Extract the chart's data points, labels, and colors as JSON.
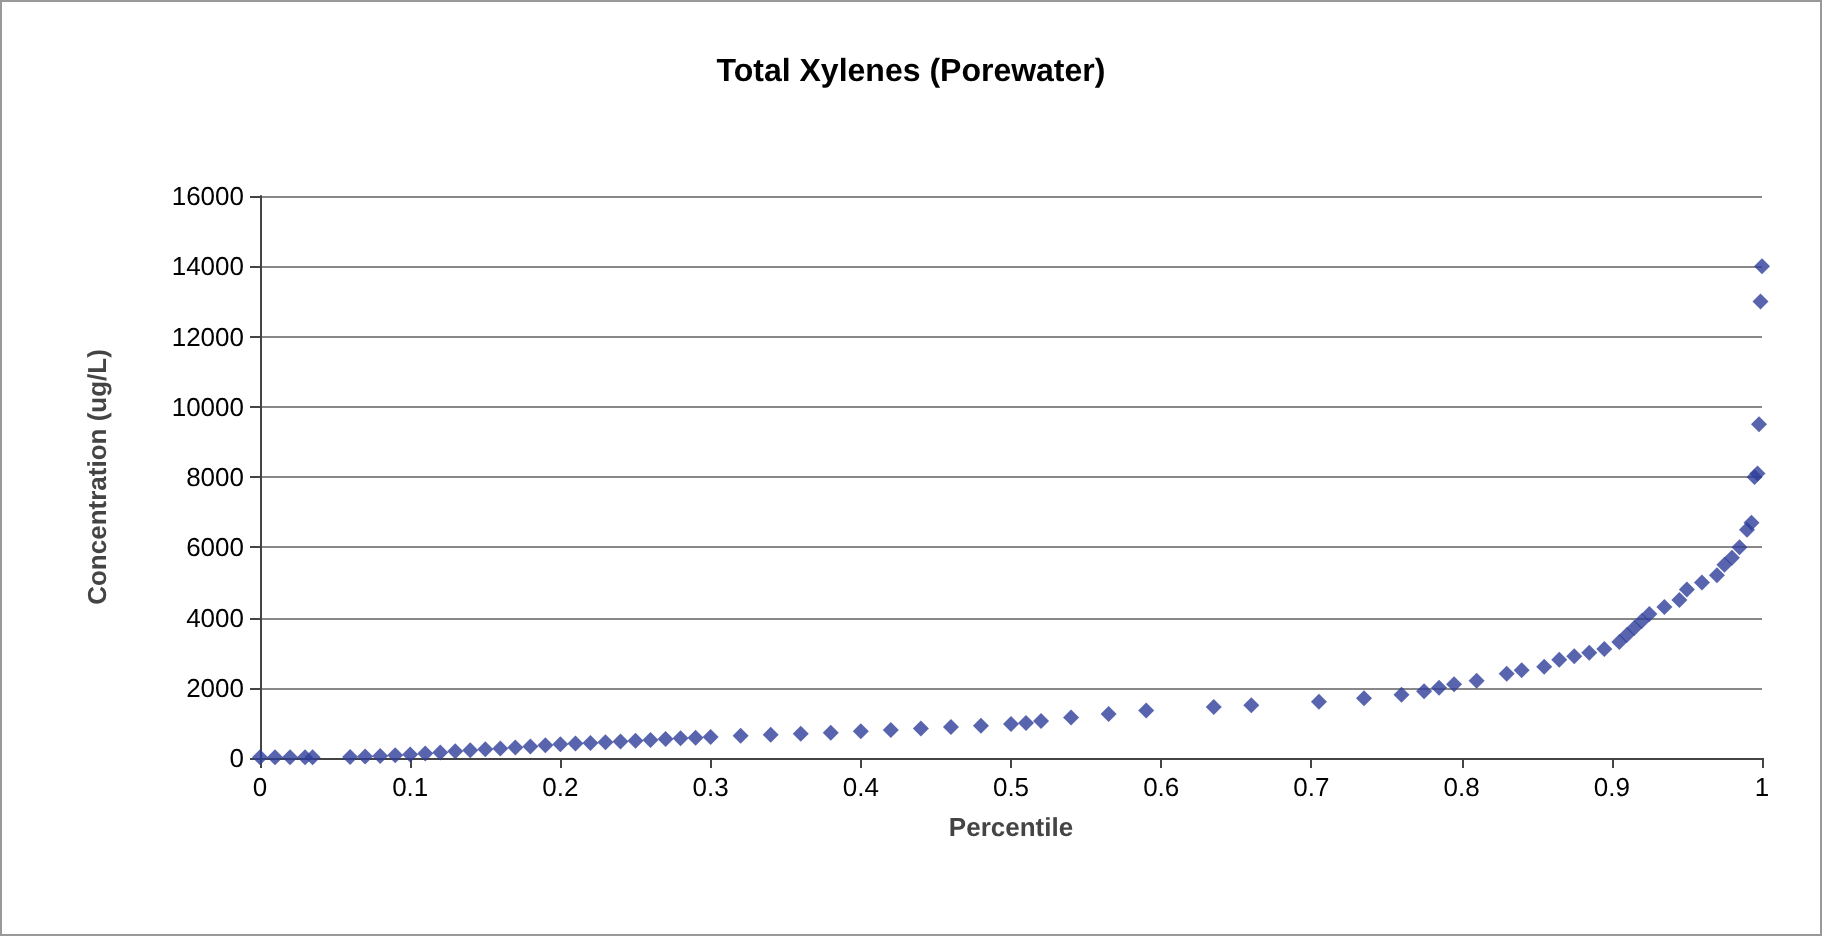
{
  "chart_data": {
    "type": "scatter",
    "title": "Total Xylenes (Porewater)",
    "xlabel": "Percentile",
    "ylabel": "Concentration (ug/L)",
    "x": [
      0,
      0.01,
      0.02,
      0.03,
      0.035,
      0.06,
      0.07,
      0.08,
      0.09,
      0.1,
      0.11,
      0.12,
      0.13,
      0.14,
      0.15,
      0.16,
      0.17,
      0.18,
      0.19,
      0.2,
      0.21,
      0.22,
      0.23,
      0.24,
      0.25,
      0.26,
      0.27,
      0.28,
      0.29,
      0.3,
      0.32,
      0.34,
      0.36,
      0.38,
      0.4,
      0.42,
      0.44,
      0.46,
      0.48,
      0.5,
      0.51,
      0.52,
      0.54,
      0.565,
      0.59,
      0.635,
      0.66,
      0.705,
      0.735,
      0.76,
      0.775,
      0.785,
      0.795,
      0.81,
      0.83,
      0.84,
      0.855,
      0.865,
      0.875,
      0.885,
      0.895,
      0.905,
      0.91,
      0.915,
      0.92,
      0.925,
      0.935,
      0.945,
      0.95,
      0.96,
      0.97,
      0.975,
      0.98,
      0.985,
      0.99,
      0.993,
      0.995,
      0.997,
      0.998,
      0.999,
      1
    ],
    "values": [
      20,
      20,
      20,
      20,
      20,
      30,
      40,
      60,
      80,
      100,
      130,
      160,
      190,
      220,
      250,
      270,
      300,
      330,
      360,
      390,
      410,
      430,
      450,
      470,
      490,
      510,
      540,
      560,
      580,
      600,
      630,
      660,
      690,
      720,
      760,
      800,
      840,
      880,
      920,
      970,
      1000,
      1050,
      1150,
      1250,
      1350,
      1450,
      1500,
      1600,
      1700,
      1800,
      1900,
      2000,
      2100,
      2200,
      2400,
      2500,
      2600,
      2800,
      2900,
      3000,
      3100,
      3300,
      3500,
      3700,
      3900,
      4100,
      4300,
      4500,
      4800,
      5000,
      5200,
      5500,
      5700,
      6000,
      6500,
      6700,
      8000,
      8100,
      9500,
      13000,
      14000
    ],
    "color": "#2e3f9a",
    "marker": "diamond",
    "xlim": [
      0,
      1
    ],
    "xticks": [
      0,
      0.1,
      0.2,
      0.3,
      0.4,
      0.5,
      0.6,
      0.7,
      0.8,
      0.9,
      1
    ],
    "ylim": [
      0,
      16000
    ],
    "yticks": [
      0,
      2000,
      4000,
      6000,
      8000,
      10000,
      12000,
      14000,
      16000
    ],
    "grid": "y"
  }
}
